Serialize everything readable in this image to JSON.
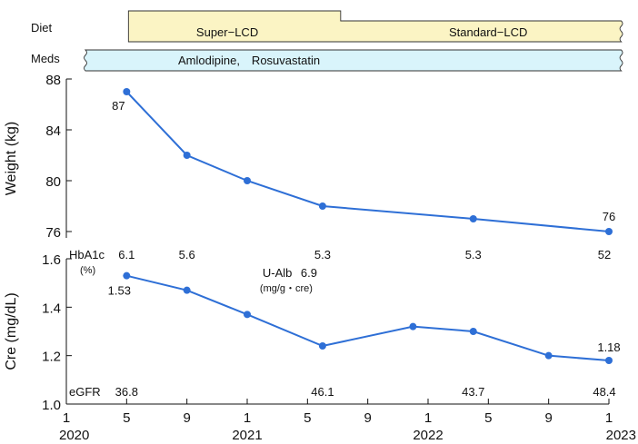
{
  "bands": {
    "diet": {
      "label": "Diet",
      "phases": [
        {
          "name": "Super−LCD",
          "start": 4,
          "end": 18.2
        },
        {
          "name": "Standard−LCD",
          "start": 18.2,
          "end": 37
        }
      ],
      "color": "#fbf4c4"
    },
    "meds": {
      "label": "Meds",
      "text": "Amlodipine,　Rosuvastatin",
      "start": 1.5,
      "end": 37,
      "color": "#d9f4fb"
    }
  },
  "x_axis": {
    "unit": "month index (0 = Jan 2020)",
    "range": [
      0,
      36
    ],
    "ticks": [
      {
        "value": 0,
        "label": "1"
      },
      {
        "value": 4,
        "label": "5"
      },
      {
        "value": 8,
        "label": "9"
      },
      {
        "value": 12,
        "label": "1"
      },
      {
        "value": 16,
        "label": "5"
      },
      {
        "value": 20,
        "label": "9"
      },
      {
        "value": 24,
        "label": "1"
      },
      {
        "value": 28,
        "label": "5"
      },
      {
        "value": 32,
        "label": "9"
      },
      {
        "value": 36,
        "label": "1"
      }
    ],
    "years": [
      {
        "value": 0,
        "label": "2020"
      },
      {
        "value": 12,
        "label": "2021"
      },
      {
        "value": 24,
        "label": "2022"
      },
      {
        "value": 36,
        "label": "2023"
      }
    ]
  },
  "chart_data": [
    {
      "type": "line",
      "ylabel": "Weight (kg)",
      "ylim": [
        75.5,
        88
      ],
      "yticks": [
        76,
        80,
        84,
        88
      ],
      "color": "#2e6fd6",
      "x": [
        4,
        8,
        12,
        17,
        27,
        36
      ],
      "values": [
        87,
        82,
        80,
        78,
        77,
        76
      ],
      "point_labels": [
        {
          "index": 0,
          "text": "87"
        },
        {
          "index": 5,
          "text": "76"
        }
      ]
    },
    {
      "type": "line",
      "ylabel": "Cre (mg/dL)",
      "ylim": [
        1.0,
        1.6
      ],
      "yticks": [
        1.0,
        1.2,
        1.4,
        1.6
      ],
      "ytick_labels": [
        "1.0",
        "1.2",
        "1.4",
        "1.6"
      ],
      "color": "#2e6fd6",
      "x": [
        4,
        8,
        12,
        17,
        23,
        27,
        32,
        36
      ],
      "values": [
        1.53,
        1.47,
        1.37,
        1.24,
        1.32,
        1.3,
        1.2,
        1.18
      ],
      "point_labels": [
        {
          "index": 0,
          "text": "1.53"
        },
        {
          "index": 7,
          "text": "1.18"
        }
      ]
    }
  ],
  "annotations": {
    "hba1c": {
      "label": "HbA1c",
      "unit": "(%)",
      "values": [
        {
          "x": 4,
          "text": "6.1"
        },
        {
          "x": 8,
          "text": "5.6"
        },
        {
          "x": 17,
          "text": "5.3"
        },
        {
          "x": 27,
          "text": "5.3"
        },
        {
          "x": 36,
          "text": "52"
        }
      ]
    },
    "ualb": {
      "label": "U-Alb",
      "value": "6.9",
      "unit": "(mg/g・cre)",
      "x": 17
    },
    "egfr": {
      "label": "eGFR",
      "values": [
        {
          "x": 4,
          "text": "36.8"
        },
        {
          "x": 17,
          "text": "46.1"
        },
        {
          "x": 27,
          "text": "43.7"
        },
        {
          "x": 36,
          "text": "48.4"
        }
      ]
    }
  }
}
